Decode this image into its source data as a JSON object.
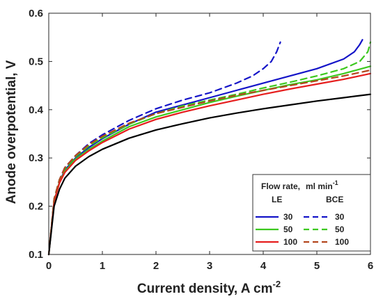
{
  "chart_data": {
    "type": "line",
    "xlabel": "Current density, A cm",
    "xlabel_sup": "-2",
    "ylabel": "Anode overpotential, V",
    "xlim": [
      0,
      6
    ],
    "ylim": [
      0.1,
      0.6
    ],
    "xticks": [
      "0",
      "1",
      "2",
      "3",
      "4",
      "5",
      "6"
    ],
    "yticks": [
      "0.1",
      "0.2",
      "0.3",
      "0.4",
      "0.5",
      "0.6"
    ],
    "legend": {
      "placement": "bottom-right",
      "title": "Flow rate,",
      "title_unit": "ml min",
      "title_unit_sup": "-1",
      "col_le": "LE",
      "col_bce": "BCE",
      "rows": [
        "30",
        "50",
        "100"
      ]
    },
    "series": [
      {
        "name": "LE 30",
        "color": "#1414c8",
        "dash": false,
        "x": [
          0,
          0.1,
          0.2,
          0.3,
          0.5,
          0.75,
          1,
          1.5,
          2,
          2.5,
          3,
          3.5,
          4,
          4.5,
          5,
          5.5,
          5.7,
          5.8,
          5.85
        ],
        "y": [
          0.1,
          0.21,
          0.25,
          0.275,
          0.3,
          0.322,
          0.34,
          0.37,
          0.395,
          0.41,
          0.425,
          0.44,
          0.455,
          0.47,
          0.485,
          0.505,
          0.52,
          0.535,
          0.545
        ]
      },
      {
        "name": "BCE 30",
        "color": "#1414c8",
        "dash": true,
        "x": [
          0,
          0.1,
          0.2,
          0.3,
          0.5,
          0.75,
          1,
          1.5,
          2,
          2.5,
          3,
          3.5,
          3.8,
          4,
          4.15,
          4.25,
          4.32
        ],
        "y": [
          0.1,
          0.215,
          0.255,
          0.28,
          0.305,
          0.33,
          0.348,
          0.378,
          0.402,
          0.42,
          0.435,
          0.455,
          0.47,
          0.485,
          0.5,
          0.52,
          0.54
        ]
      },
      {
        "name": "LE 50",
        "color": "#3cc81e",
        "dash": false,
        "x": [
          0,
          0.1,
          0.2,
          0.3,
          0.5,
          0.75,
          1,
          1.5,
          2,
          2.5,
          3,
          3.5,
          4,
          4.5,
          5,
          5.5,
          6
        ],
        "y": [
          0.1,
          0.21,
          0.25,
          0.272,
          0.298,
          0.318,
          0.335,
          0.365,
          0.385,
          0.4,
          0.415,
          0.428,
          0.44,
          0.452,
          0.462,
          0.475,
          0.49
        ]
      },
      {
        "name": "BCE 50",
        "color": "#3cc81e",
        "dash": true,
        "x": [
          0,
          0.1,
          0.2,
          0.3,
          0.5,
          0.75,
          1,
          1.5,
          2,
          2.5,
          3,
          3.5,
          4,
          4.5,
          5,
          5.5,
          5.8,
          5.95,
          6
        ],
        "y": [
          0.1,
          0.215,
          0.255,
          0.278,
          0.303,
          0.325,
          0.342,
          0.37,
          0.392,
          0.408,
          0.42,
          0.432,
          0.445,
          0.457,
          0.47,
          0.485,
          0.5,
          0.52,
          0.54
        ]
      },
      {
        "name": "LE 100",
        "color": "#e61e1e",
        "dash": false,
        "x": [
          0,
          0.1,
          0.2,
          0.3,
          0.5,
          0.75,
          1,
          1.5,
          2,
          2.5,
          3,
          3.5,
          4,
          4.5,
          5,
          5.5,
          6
        ],
        "y": [
          0.1,
          0.21,
          0.248,
          0.27,
          0.295,
          0.315,
          0.332,
          0.36,
          0.38,
          0.395,
          0.408,
          0.42,
          0.432,
          0.443,
          0.453,
          0.463,
          0.475
        ]
      },
      {
        "name": "BCE 100",
        "color": "#b4461e",
        "dash": true,
        "x": [
          0,
          0.1,
          0.2,
          0.3,
          0.5,
          0.75,
          1,
          1.5,
          2,
          2.5,
          3,
          3.5,
          4,
          4.5,
          5,
          5.5,
          6
        ],
        "y": [
          0.1,
          0.215,
          0.255,
          0.28,
          0.305,
          0.328,
          0.345,
          0.372,
          0.392,
          0.405,
          0.418,
          0.43,
          0.44,
          0.45,
          0.46,
          0.47,
          0.482
        ]
      },
      {
        "name": "",
        "color": "#000000",
        "dash": false,
        "x": [
          0,
          0.1,
          0.2,
          0.3,
          0.5,
          0.75,
          1,
          1.5,
          2,
          2.5,
          3,
          3.5,
          4,
          4.5,
          5,
          5.5,
          6
        ],
        "y": [
          0.1,
          0.2,
          0.235,
          0.258,
          0.283,
          0.303,
          0.318,
          0.341,
          0.358,
          0.371,
          0.383,
          0.393,
          0.402,
          0.41,
          0.418,
          0.425,
          0.432
        ]
      }
    ]
  }
}
